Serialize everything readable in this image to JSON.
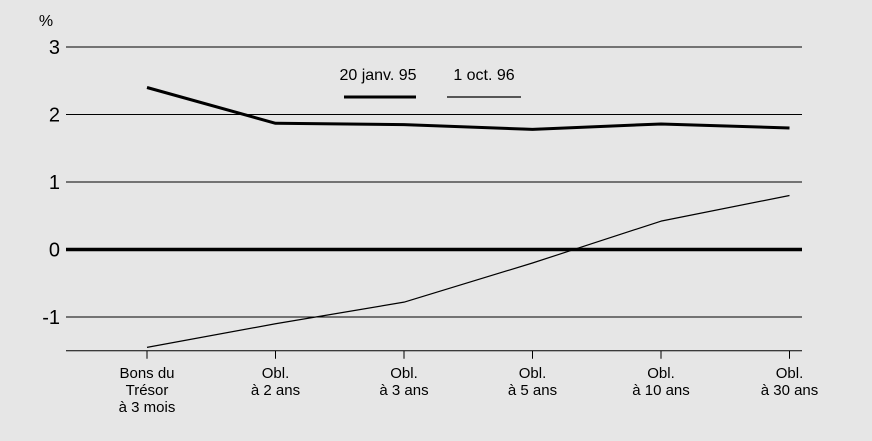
{
  "chart_data": {
    "type": "line",
    "ylabel": "%",
    "ylim": [
      -1.5,
      3
    ],
    "y_ticks": [
      "3",
      "2",
      "1",
      "0",
      "-1"
    ],
    "y_tick_values": [
      3,
      2,
      1,
      0,
      -1
    ],
    "categories": [
      [
        "Bons du",
        "Trésor",
        "à 3 mois"
      ],
      [
        "Obl.",
        "à 2 ans"
      ],
      [
        "Obl.",
        "à 3 ans"
      ],
      [
        "Obl.",
        "à 5 ans"
      ],
      [
        "Obl.",
        "à 10 ans"
      ],
      [
        "Obl.",
        "à 30 ans"
      ]
    ],
    "series": [
      {
        "name": "20 janv. 95",
        "values": [
          2.4,
          1.87,
          1.85,
          1.78,
          1.86,
          1.8
        ],
        "line": "thick"
      },
      {
        "name": "1 oct. 96",
        "values": [
          -1.45,
          -1.1,
          -0.78,
          -0.2,
          0.42,
          0.8
        ],
        "line": "thin"
      }
    ],
    "grid": "horizontal",
    "legend": "top-center",
    "zero_line_emphasized": true
  }
}
